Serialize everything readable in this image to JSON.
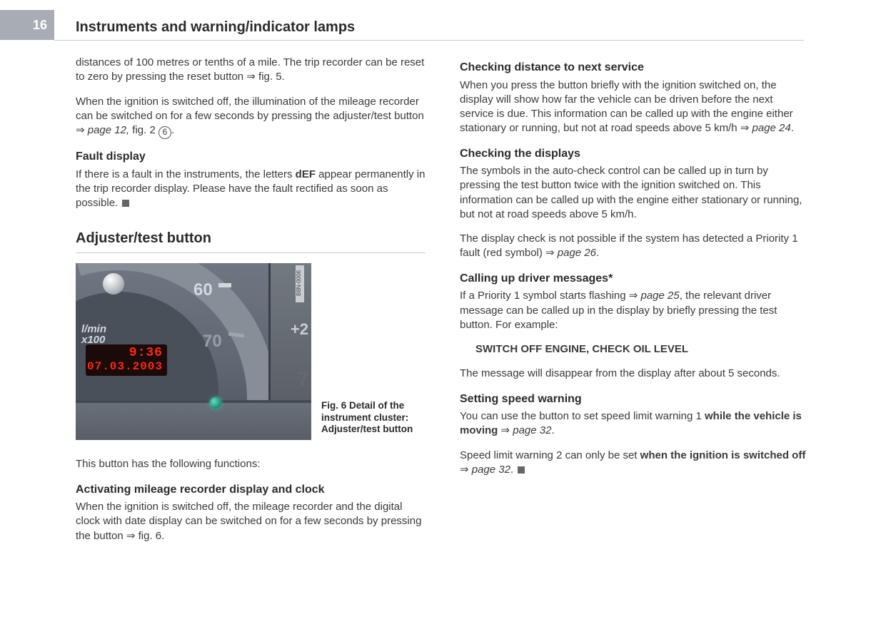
{
  "page_number": "16",
  "page_title": "Instruments and warning/indicator lamps",
  "left_col": {
    "p1": "distances of 100 metres or tenths of a mile. The trip recorder can be reset to zero by pressing the reset button ⇒ fig. 5.",
    "p2_a": "When the ignition is switched off, the illumination of the mileage recorder can be switched on for a few seconds by pressing the adjuster/test button ⇒ ",
    "p2_ref": "page 12,",
    "p2_b": " fig. 2  ",
    "p2_circ": "6",
    "p2_c": ".",
    "sub1": "Fault display",
    "p3_a": "If there is a fault in the instruments, the letters ",
    "p3_bold": "dEF",
    "p3_b": " appear permanently in the trip recorder display. Please have the fault rectified as soon as possible.",
    "section": "Adjuster/test button",
    "fig": {
      "num60": "60",
      "num70": "70",
      "lmin": "l/min\nx100",
      "time": "9:36",
      "date": "07.03.2003",
      "plus20": "+2",
      "seven": "7",
      "strip": "B8N-0006",
      "caption": "Fig. 6   Detail of the instrument cluster: Adjuster/test button"
    },
    "p4": "This button has the following functions:",
    "sub2": "Activating mileage recorder display and clock",
    "p5": "When the ignition is switched off, the mileage recorder and the digital clock with date display can be switched on for a few seconds by pressing the button ⇒ fig. 6."
  },
  "right_col": {
    "sub1": "Checking distance to next service",
    "p1_a": "When you press the button briefly with the ignition switched on, the display will show how far the vehicle can be driven before the next service is due. This information can be called up with the engine either stationary or running, but not at road speeds above 5 km/h ⇒ ",
    "p1_ref": "page 24",
    "p1_b": ".",
    "sub2": "Checking the displays",
    "p2": "The symbols in the auto-check control can be called up in turn by pressing the test button twice with the ignition switched on. This information can be called up with the engine either stationary or running, but not at road speeds above 5 km/h.",
    "p3_a": "The display check is not possible if the system has detected a Priority 1 fault (red symbol) ⇒ ",
    "p3_ref": "page 26",
    "p3_b": ".",
    "sub3": "Calling up driver messages*",
    "p4_a": "If a Priority 1 symbol starts flashing ⇒ ",
    "p4_ref": "page 25",
    "p4_b": ", the relevant driver message can be called up in the display by briefly pressing the test button. For example:",
    "warn": "SWITCH OFF ENGINE, CHECK OIL LEVEL",
    "p5": "The message will disappear from the display after about 5 seconds.",
    "sub4": "Setting speed warning",
    "p6_a": "You can use the button to set speed limit warning 1 ",
    "p6_bold": "while the vehicle is moving",
    "p6_b": " ⇒ ",
    "p6_ref": "page 32",
    "p6_c": ".",
    "p7_a": "Speed limit warning 2 can only be set ",
    "p7_bold": "when the ignition is switched off",
    "p7_b": " ⇒ ",
    "p7_ref": "page 32",
    "p7_c": "."
  }
}
